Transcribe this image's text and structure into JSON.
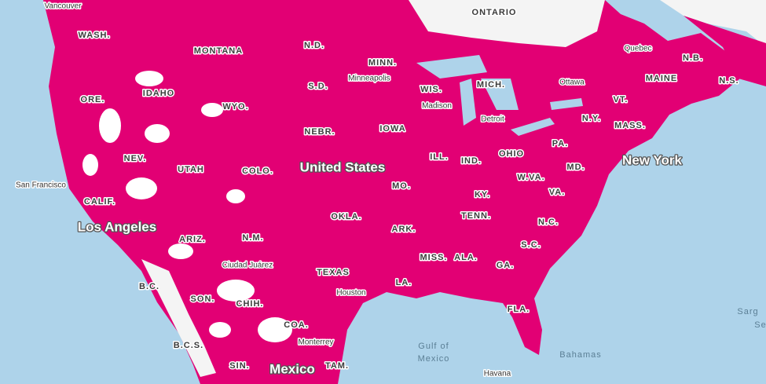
{
  "map": {
    "states": [
      "WASH.",
      "MONTANA",
      "N.D.",
      "MINN.",
      "S.D.",
      "WIS.",
      "MICH.",
      "ORE.",
      "IDAHO",
      "WYO.",
      "NEBR.",
      "IOWA",
      "N.Y.",
      "VT.",
      "MASS.",
      "MAINE",
      "N.B.",
      "N.S.",
      "NEV.",
      "UTAH",
      "COLO.",
      "ILL.",
      "IND.",
      "OHIO",
      "PA.",
      "MD.",
      "W.VA.",
      "VA.",
      "MO.",
      "KY.",
      "CALIF.",
      "OKLA.",
      "TENN.",
      "N.C.",
      "ARIZ.",
      "N.M.",
      "ARK.",
      "S.C.",
      "MISS.",
      "ALA.",
      "GA.",
      "TEXAS",
      "LA.",
      "FLA.",
      "B.C.",
      "SON.",
      "CHIH.",
      "COA.",
      "B.C.S.",
      "SIN.",
      "TAM.",
      "ONTARIO"
    ],
    "cities": [
      "Vancouver",
      "Minneapolis",
      "Madison",
      "Ottawa",
      "Detroit",
      "San Francisco",
      "Ciudad Juárez",
      "Houston",
      "Monterrey",
      "Havana",
      "Quebec"
    ],
    "major_labels": [
      "Los Angeles",
      "New York",
      "United States",
      "Mexico"
    ],
    "water": [
      "Gulf of",
      "Mexico",
      "Bahamas",
      "Sarg",
      "Se"
    ]
  }
}
